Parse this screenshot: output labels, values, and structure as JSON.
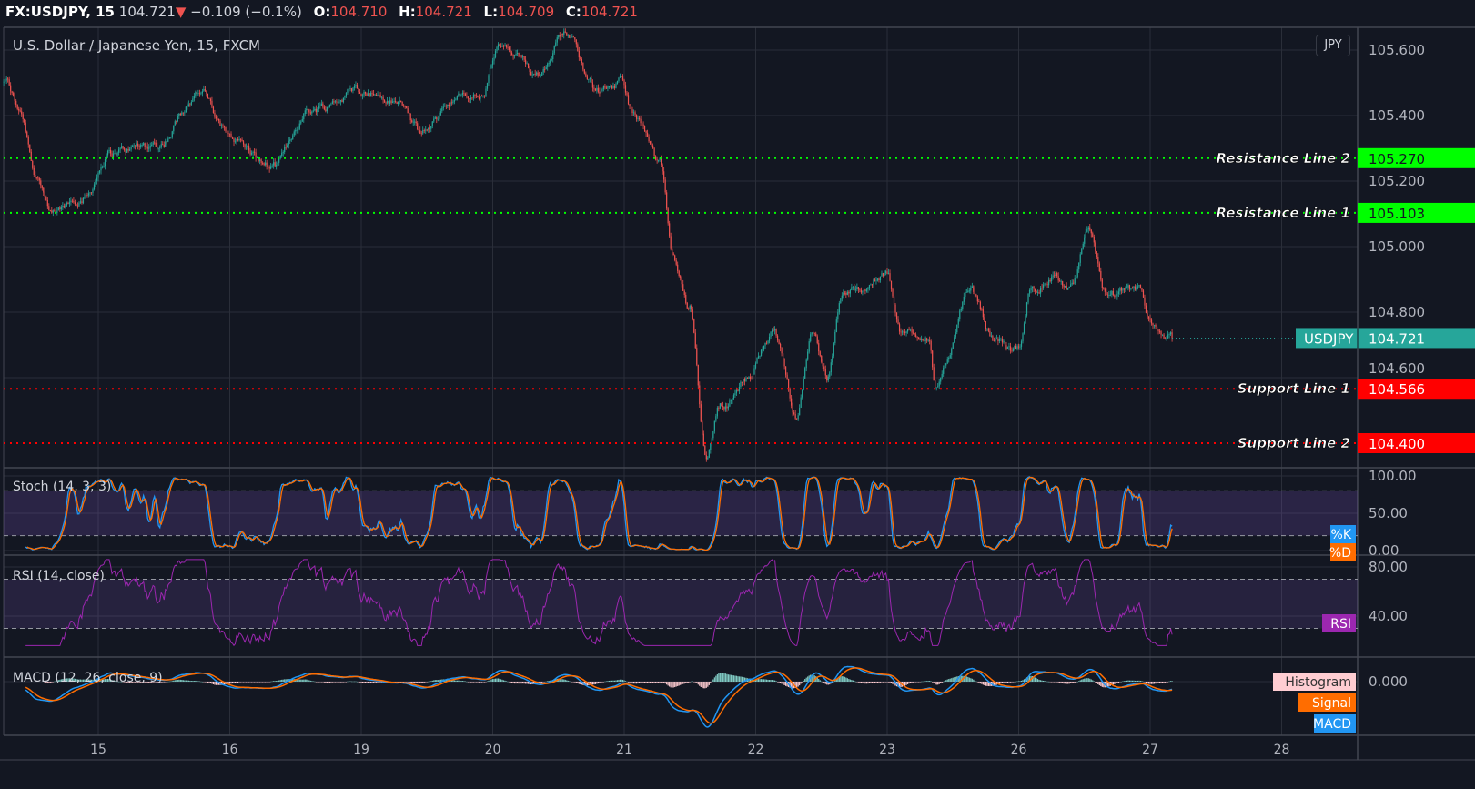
{
  "header": {
    "symbol": "FX:USDJPY, 15",
    "last": "104.721",
    "direction_icon": "triangle-down-icon",
    "change": "−0.109 (−0.1%)",
    "o_label": "O:",
    "o": "104.710",
    "h_label": "H:",
    "h": "104.721",
    "l_label": "L:",
    "l": "104.709",
    "c_label": "C:",
    "c": "104.721"
  },
  "main_title": "U.S. Dollar / Japanese Yen, 15, FXCM",
  "currency_button": "JPY",
  "colors": {
    "background": "#131722",
    "grid": "#2a2e39",
    "up": "#26a69a",
    "down": "#ef5350",
    "resistance": "#00ff00",
    "support": "#ff0000",
    "last_price": "#26a69a",
    "k": "#2196f3",
    "d": "#ff6d00",
    "rsi": "#9c27b0",
    "band": "#2a1a4a",
    "macd": "#2196f3",
    "signal": "#ff6d00",
    "histogram_tag": "#ffcdd2"
  },
  "chart_data": {
    "type": "candlestick",
    "interval": "15",
    "trading_days": [
      "10-14",
      "10-15",
      "10-16",
      "10-19",
      "10-20",
      "10-21",
      "10-22",
      "10-23",
      "10-26",
      "10-27",
      "10-28"
    ],
    "x_tick_labels": [
      "15",
      "16",
      "19",
      "20",
      "21",
      "22",
      "23",
      "26",
      "27",
      "28"
    ],
    "y_ticks": [
      "105.600",
      "105.400",
      "105.200",
      "105.000",
      "104.800",
      "104.600"
    ],
    "ylim": [
      104.33,
      105.72
    ],
    "close_keypoints": [
      [
        "10-14 07:00",
        105.5
      ],
      [
        "10-14 09:30",
        105.42
      ],
      [
        "10-14 13:00",
        105.22
      ],
      [
        "10-14 15:30",
        105.09
      ],
      [
        "10-14 21:30",
        105.16
      ],
      [
        "10-15 02:00",
        105.29
      ],
      [
        "10-15 10:30",
        105.31
      ],
      [
        "10-15 18:30",
        105.48
      ],
      [
        "10-15 23:30",
        105.34
      ],
      [
        "10-16 08:00",
        105.24
      ],
      [
        "10-16 14:30",
        105.42
      ],
      [
        "10-19 00:20",
        105.48
      ],
      [
        "10-19 07:00",
        105.44
      ],
      [
        "10-19 11:00",
        105.34
      ],
      [
        "10-19 17:00",
        105.45
      ],
      [
        "10-19 22:00",
        105.46
      ],
      [
        "10-20 01:00",
        105.6
      ],
      [
        "10-20 08:00",
        105.53
      ],
      [
        "10-20 13:00",
        105.66
      ],
      [
        "10-20 19:30",
        105.48
      ],
      [
        "10-20 23:00",
        105.5
      ],
      [
        "10-21 02:00",
        105.39
      ],
      [
        "10-21 06:30",
        105.24
      ],
      [
        "10-21 09:00",
        104.95
      ],
      [
        "10-21 12:00",
        104.81
      ],
      [
        "10-21 15:00",
        104.38
      ],
      [
        "10-21 17:30",
        104.52
      ],
      [
        "10-21 22:30",
        104.59
      ],
      [
        "10-22 03:00",
        104.74
      ],
      [
        "10-22 07:30",
        104.5
      ],
      [
        "10-22 10:30",
        104.75
      ],
      [
        "10-22 13:00",
        104.59
      ],
      [
        "10-22 16:00",
        104.86
      ],
      [
        "10-23 00:00",
        104.91
      ],
      [
        "10-23 02:30",
        104.73
      ],
      [
        "10-23 07:30",
        104.74
      ],
      [
        "10-23 09:00",
        104.57
      ],
      [
        "10-23 15:00",
        104.86
      ],
      [
        "10-23 20:00",
        104.71
      ],
      [
        "10-26 00:00",
        104.68
      ],
      [
        "10-26 02:00",
        104.86
      ],
      [
        "10-26 06:30",
        104.92
      ],
      [
        "10-26 09:30",
        104.86
      ],
      [
        "10-26 13:00",
        105.03
      ],
      [
        "10-26 16:00",
        104.86
      ],
      [
        "10-26 22:00",
        104.85
      ],
      [
        "10-27 00:30",
        104.75
      ],
      [
        "10-27 03:00",
        104.7
      ],
      [
        "10-27 04:00",
        104.721
      ]
    ],
    "horizontal_lines": [
      {
        "label": "Resistance Line 2",
        "value": 105.27,
        "value_text": "105.270",
        "kind": "resistance"
      },
      {
        "label": "Resistance Line 1",
        "value": 105.103,
        "value_text": "105.103",
        "kind": "resistance"
      },
      {
        "label": "Support Line 1",
        "value": 104.566,
        "value_text": "104.566",
        "kind": "support"
      },
      {
        "label": "Support Line 2",
        "value": 104.4,
        "value_text": "104.400",
        "kind": "support"
      }
    ],
    "last_price": {
      "label": "USDJPY",
      "value": 104.721,
      "value_text": "104.721"
    },
    "indicators": {
      "stoch": {
        "title": "Stoch (14, 3, 3)",
        "ticks": [
          "100.00",
          "50.00",
          "0.00"
        ],
        "bands": [
          20,
          80
        ],
        "ylim": [
          0,
          100
        ],
        "tags": [
          "%K",
          "%D"
        ]
      },
      "rsi": {
        "title": "RSI (14, close)",
        "ticks": [
          "80.00",
          "40.00"
        ],
        "bands": [
          30,
          70
        ],
        "ylim": [
          16,
          86
        ],
        "tags": [
          "RSI"
        ]
      },
      "macd": {
        "title": "MACD (12, 26, close, 9)",
        "ticks": [
          "0.000"
        ],
        "tags": [
          "Histogram",
          "Signal",
          "MACD"
        ]
      }
    }
  }
}
